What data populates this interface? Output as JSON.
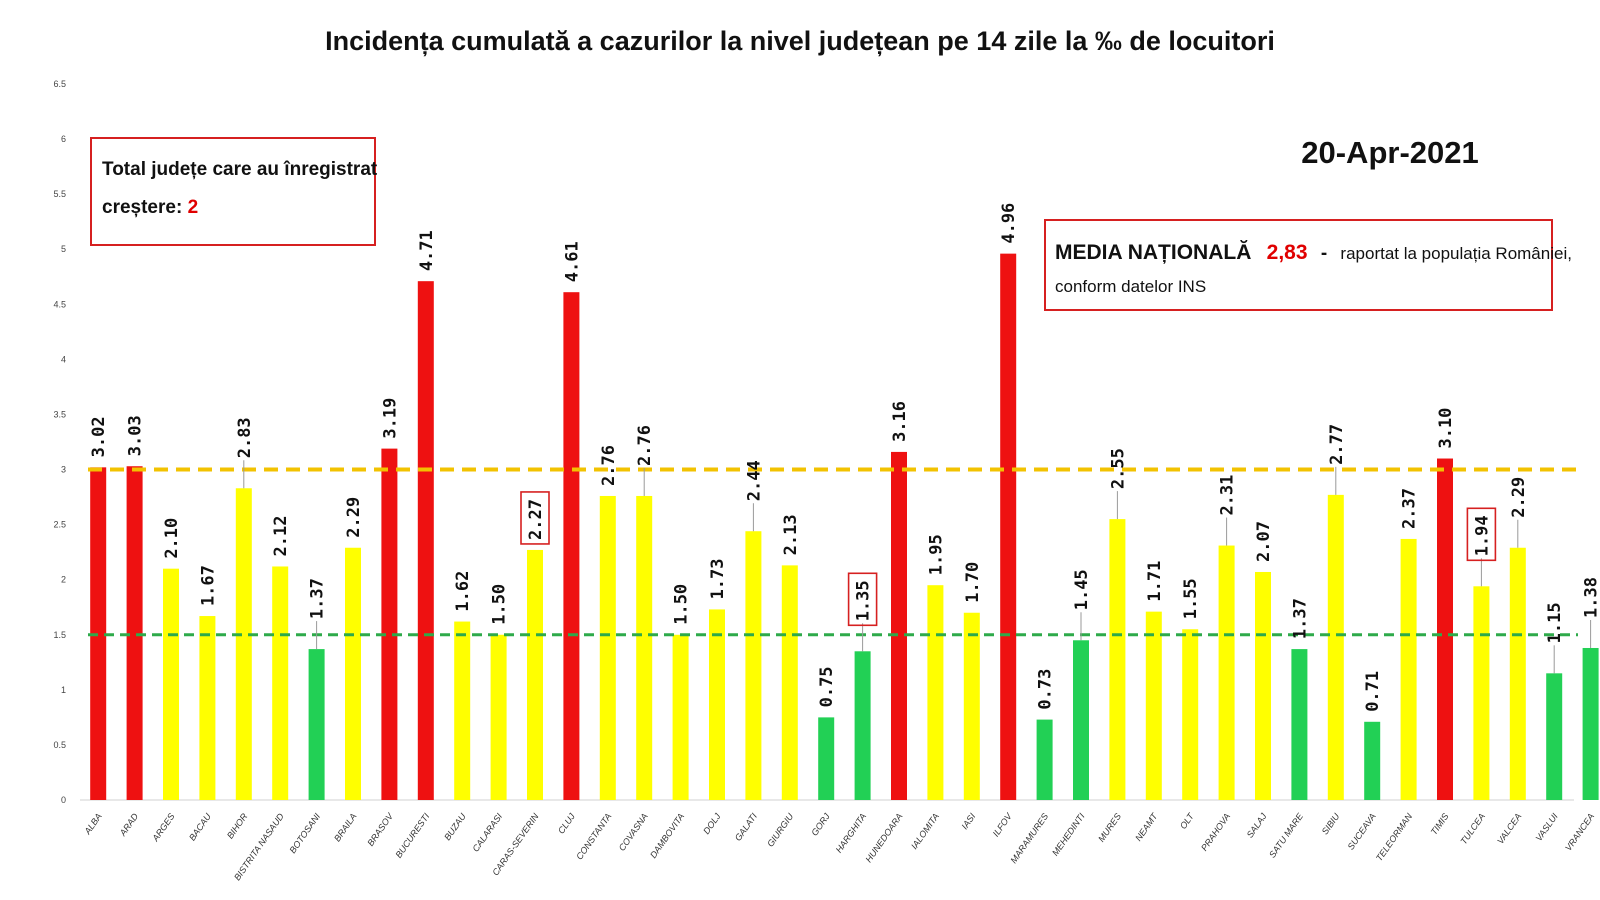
{
  "chart_data": {
    "type": "bar",
    "title": "Incidența cumulată a cazurilor la nivel județean pe 14 zile la ‰ de locuitori",
    "date": "20-Apr-2021",
    "ylim": [
      0,
      6.5
    ],
    "yticks": [
      "0",
      "0.5",
      "1",
      "1.5",
      "2",
      "2.5",
      "3",
      "3.5",
      "4",
      "4.5",
      "5",
      "5.5",
      "6",
      "6.5"
    ],
    "categories": [
      "ALBA",
      "ARAD",
      "ARGES",
      "BACAU",
      "BIHOR",
      "BISTRITA NASAUD",
      "BOTOSANI",
      "BRAILA",
      "BRASOV",
      "BUCURESTI",
      "BUZAU",
      "CALARASI",
      "CARAS-SEVERIN",
      "CLUJ",
      "CONSTANTA",
      "COVASNA",
      "DAMBOVITA",
      "DOLJ",
      "GALATI",
      "GIURGIU",
      "GORJ",
      "HARGHITA",
      "HUNEDOARA",
      "IALOMITA",
      "IASI",
      "ILFOV",
      "MARAMURES",
      "MEHEDINTI",
      "MURES",
      "NEAMT",
      "OLT",
      "PRAHOVA",
      "SALAJ",
      "SATU MARE",
      "SIBIU",
      "SUCEAVA",
      "TELEORMAN",
      "TIMIS",
      "TULCEA",
      "VALCEA",
      "VASLUI",
      "VRANCEA"
    ],
    "values": [
      3.02,
      3.03,
      2.1,
      1.67,
      2.83,
      2.12,
      1.37,
      2.29,
      3.19,
      4.71,
      1.62,
      1.5,
      2.27,
      4.61,
      2.76,
      2.76,
      1.5,
      1.73,
      2.44,
      2.13,
      0.75,
      1.35,
      3.16,
      1.95,
      1.7,
      4.96,
      0.73,
      1.45,
      2.55,
      1.71,
      1.55,
      2.31,
      2.07,
      1.37,
      2.77,
      0.71,
      2.37,
      3.1,
      1.94,
      2.29,
      1.15,
      1.38
    ],
    "labels": [
      "3.02",
      "3.03",
      "2.10",
      "1.67",
      "2.83",
      "2.12",
      "1.37",
      "2.29",
      "3.19",
      "4.71",
      "1.62",
      "1.50",
      "2.27",
      "4.61",
      "2.76",
      "2.76",
      "1.50",
      "1.73",
      "2.44",
      "2.13",
      "0.75",
      "1.35",
      "3.16",
      "1.95",
      "1.70",
      "4.96",
      "0.73",
      "1.45",
      "2.55",
      "1.71",
      "1.55",
      "2.31",
      "2.07",
      "1.37",
      "2.77",
      "0.71",
      "2.37",
      "3.10",
      "1.94",
      "2.29",
      "1.15",
      "1.38"
    ],
    "colors": [
      "red",
      "red",
      "yellow",
      "yellow",
      "yellow",
      "yellow",
      "green",
      "yellow",
      "red",
      "red",
      "yellow",
      "yellow",
      "yellow",
      "red",
      "yellow",
      "yellow",
      "yellow",
      "yellow",
      "yellow",
      "yellow",
      "green",
      "green",
      "red",
      "yellow",
      "yellow",
      "red",
      "green",
      "green",
      "yellow",
      "yellow",
      "yellow",
      "yellow",
      "yellow",
      "green",
      "yellow",
      "green",
      "yellow",
      "red",
      "yellow",
      "yellow",
      "green",
      "green"
    ],
    "boxed_labels": [
      "CARAS-SEVERIN",
      "HARGHITA",
      "TULCEA"
    ],
    "leader_lines": [
      "BIHOR",
      "BOTOSANI",
      "COVASNA",
      "GALATI",
      "HARGHITA",
      "MEHEDINTI",
      "MURES",
      "PRAHOVA",
      "SIBIU",
      "TULCEA",
      "VALCEA",
      "VASLUI",
      "VRANCEA"
    ],
    "reference_lines": [
      {
        "value": 3.0,
        "color": "#f2c200"
      },
      {
        "value": 1.5,
        "color": "#2eaa4a"
      }
    ],
    "palette": {
      "red": "#ee1111",
      "yellow": "#ffff00",
      "green": "#22d055",
      "box_border": "#d62020"
    }
  },
  "info_box": {
    "line1": "Total județe care au înregistrat",
    "line2_prefix": "creștere: ",
    "count": "2"
  },
  "national_box": {
    "label": "MEDIA NAȚIONALĂ",
    "value": "2,83",
    "dash": "-",
    "rest": "raportat la populația României,",
    "line2": "conform datelor INS"
  }
}
